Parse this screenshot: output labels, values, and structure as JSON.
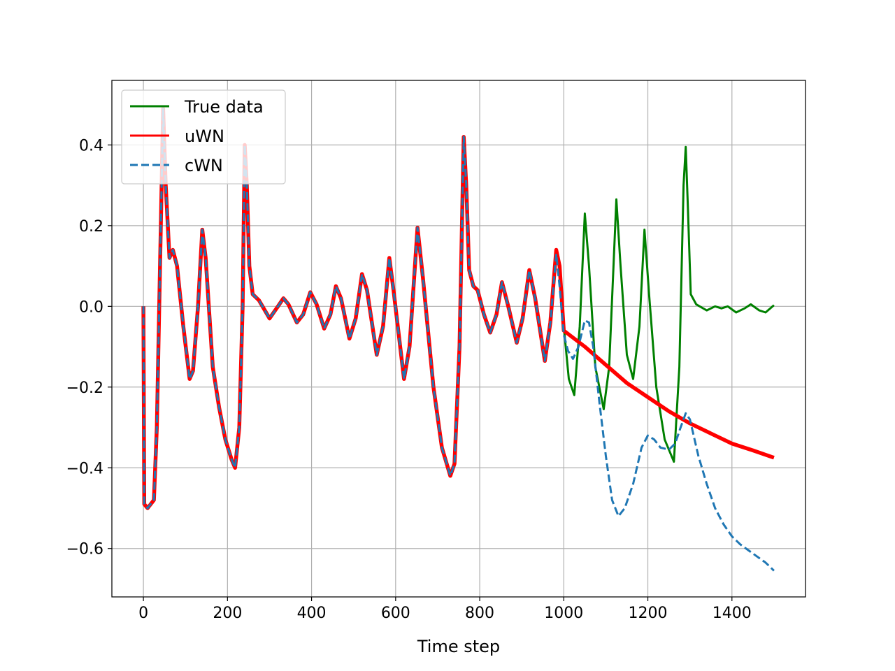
{
  "chart_data": {
    "type": "line",
    "title": "",
    "xlabel": "Time step",
    "ylabel": "",
    "xlim": [
      -75,
      1575
    ],
    "ylim": [
      -0.72,
      0.56
    ],
    "xticks": [
      0,
      200,
      400,
      600,
      800,
      1000,
      1200,
      1400
    ],
    "yticks": [
      -0.6,
      -0.4,
      -0.2,
      0.0,
      0.2,
      0.4
    ],
    "ytick_labels": [
      "−0.6",
      "−0.4",
      "−0.2",
      "0.0",
      "0.2",
      "0.4"
    ],
    "grid": true,
    "legend": {
      "position": "top-left"
    },
    "series": [
      {
        "name": "True data",
        "color": "#008000",
        "style": "solid",
        "points": [
          [
            0,
            0.0
          ],
          [
            2,
            -0.49
          ],
          [
            10,
            -0.5
          ],
          [
            25,
            -0.48
          ],
          [
            32,
            -0.3
          ],
          [
            40,
            0.12
          ],
          [
            47,
            0.49
          ],
          [
            53,
            0.3
          ],
          [
            62,
            0.12
          ],
          [
            70,
            0.14
          ],
          [
            80,
            0.1
          ],
          [
            95,
            -0.05
          ],
          [
            110,
            -0.18
          ],
          [
            118,
            -0.16
          ],
          [
            130,
            0.0
          ],
          [
            140,
            0.19
          ],
          [
            148,
            0.12
          ],
          [
            165,
            -0.15
          ],
          [
            180,
            -0.25
          ],
          [
            195,
            -0.33
          ],
          [
            210,
            -0.38
          ],
          [
            218,
            -0.4
          ],
          [
            228,
            -0.3
          ],
          [
            236,
            0.0
          ],
          [
            241,
            0.4
          ],
          [
            246,
            0.3
          ],
          [
            252,
            0.1
          ],
          [
            260,
            0.03
          ],
          [
            275,
            0.015
          ],
          [
            300,
            -0.03
          ],
          [
            320,
            0.0
          ],
          [
            333,
            0.02
          ],
          [
            345,
            0.005
          ],
          [
            365,
            -0.04
          ],
          [
            380,
            -0.02
          ],
          [
            397,
            0.035
          ],
          [
            412,
            0.005
          ],
          [
            430,
            -0.055
          ],
          [
            445,
            -0.02
          ],
          [
            458,
            0.05
          ],
          [
            470,
            0.02
          ],
          [
            490,
            -0.08
          ],
          [
            505,
            -0.03
          ],
          [
            520,
            0.08
          ],
          [
            532,
            0.04
          ],
          [
            555,
            -0.12
          ],
          [
            570,
            -0.05
          ],
          [
            585,
            0.12
          ],
          [
            595,
            0.04
          ],
          [
            620,
            -0.18
          ],
          [
            633,
            -0.1
          ],
          [
            652,
            0.195
          ],
          [
            665,
            0.07
          ],
          [
            690,
            -0.2
          ],
          [
            710,
            -0.35
          ],
          [
            730,
            -0.42
          ],
          [
            740,
            -0.39
          ],
          [
            752,
            -0.1
          ],
          [
            762,
            0.42
          ],
          [
            768,
            0.3
          ],
          [
            775,
            0.09
          ],
          [
            785,
            0.05
          ],
          [
            795,
            0.04
          ],
          [
            810,
            -0.02
          ],
          [
            825,
            -0.065
          ],
          [
            840,
            -0.02
          ],
          [
            853,
            0.06
          ],
          [
            868,
            0.0
          ],
          [
            888,
            -0.09
          ],
          [
            902,
            -0.03
          ],
          [
            918,
            0.09
          ],
          [
            932,
            0.02
          ],
          [
            955,
            -0.135
          ],
          [
            968,
            -0.04
          ],
          [
            982,
            0.14
          ],
          [
            990,
            0.1
          ],
          [
            1000,
            -0.05
          ],
          [
            1012,
            -0.18
          ],
          [
            1025,
            -0.22
          ],
          [
            1038,
            -0.05
          ],
          [
            1050,
            0.23
          ],
          [
            1060,
            0.1
          ],
          [
            1075,
            -0.15
          ],
          [
            1095,
            -0.255
          ],
          [
            1108,
            -0.15
          ],
          [
            1125,
            0.265
          ],
          [
            1135,
            0.1
          ],
          [
            1150,
            -0.12
          ],
          [
            1165,
            -0.18
          ],
          [
            1180,
            -0.05
          ],
          [
            1192,
            0.19
          ],
          [
            1203,
            0.03
          ],
          [
            1220,
            -0.2
          ],
          [
            1240,
            -0.33
          ],
          [
            1262,
            -0.385
          ],
          [
            1275,
            -0.15
          ],
          [
            1285,
            0.3
          ],
          [
            1290,
            0.395
          ],
          [
            1295,
            0.25
          ],
          [
            1302,
            0.03
          ],
          [
            1315,
            0.005
          ],
          [
            1340,
            -0.01
          ],
          [
            1360,
            0.0
          ],
          [
            1375,
            -0.005
          ],
          [
            1390,
            0.0
          ],
          [
            1410,
            -0.015
          ],
          [
            1430,
            -0.005
          ],
          [
            1445,
            0.005
          ],
          [
            1465,
            -0.01
          ],
          [
            1480,
            -0.015
          ],
          [
            1500,
            0.003
          ]
        ]
      },
      {
        "name": "uWN",
        "color": "#ff0000",
        "style": "solid",
        "points": [
          [
            0,
            0.0
          ],
          [
            2,
            -0.49
          ],
          [
            10,
            -0.5
          ],
          [
            25,
            -0.48
          ],
          [
            32,
            -0.3
          ],
          [
            40,
            0.12
          ],
          [
            47,
            0.49
          ],
          [
            53,
            0.3
          ],
          [
            62,
            0.12
          ],
          [
            70,
            0.14
          ],
          [
            80,
            0.1
          ],
          [
            95,
            -0.05
          ],
          [
            110,
            -0.18
          ],
          [
            118,
            -0.16
          ],
          [
            130,
            0.0
          ],
          [
            140,
            0.19
          ],
          [
            148,
            0.12
          ],
          [
            165,
            -0.15
          ],
          [
            180,
            -0.25
          ],
          [
            195,
            -0.33
          ],
          [
            210,
            -0.38
          ],
          [
            218,
            -0.4
          ],
          [
            228,
            -0.3
          ],
          [
            236,
            0.0
          ],
          [
            241,
            0.4
          ],
          [
            246,
            0.3
          ],
          [
            252,
            0.1
          ],
          [
            260,
            0.03
          ],
          [
            275,
            0.015
          ],
          [
            300,
            -0.03
          ],
          [
            320,
            0.0
          ],
          [
            333,
            0.02
          ],
          [
            345,
            0.005
          ],
          [
            365,
            -0.04
          ],
          [
            380,
            -0.02
          ],
          [
            397,
            0.035
          ],
          [
            412,
            0.005
          ],
          [
            430,
            -0.055
          ],
          [
            445,
            -0.02
          ],
          [
            458,
            0.05
          ],
          [
            470,
            0.02
          ],
          [
            490,
            -0.08
          ],
          [
            505,
            -0.03
          ],
          [
            520,
            0.08
          ],
          [
            532,
            0.04
          ],
          [
            555,
            -0.12
          ],
          [
            570,
            -0.05
          ],
          [
            585,
            0.12
          ],
          [
            595,
            0.04
          ],
          [
            620,
            -0.18
          ],
          [
            633,
            -0.1
          ],
          [
            652,
            0.195
          ],
          [
            665,
            0.07
          ],
          [
            690,
            -0.2
          ],
          [
            710,
            -0.35
          ],
          [
            730,
            -0.42
          ],
          [
            740,
            -0.39
          ],
          [
            752,
            -0.1
          ],
          [
            762,
            0.42
          ],
          [
            768,
            0.3
          ],
          [
            775,
            0.09
          ],
          [
            785,
            0.05
          ],
          [
            795,
            0.04
          ],
          [
            810,
            -0.02
          ],
          [
            825,
            -0.065
          ],
          [
            840,
            -0.02
          ],
          [
            853,
            0.06
          ],
          [
            868,
            0.0
          ],
          [
            888,
            -0.09
          ],
          [
            902,
            -0.03
          ],
          [
            918,
            0.09
          ],
          [
            932,
            0.02
          ],
          [
            955,
            -0.135
          ],
          [
            968,
            -0.04
          ],
          [
            982,
            0.14
          ],
          [
            990,
            0.1
          ],
          [
            1000,
            -0.06
          ],
          [
            1050,
            -0.1
          ],
          [
            1100,
            -0.145
          ],
          [
            1150,
            -0.19
          ],
          [
            1200,
            -0.225
          ],
          [
            1250,
            -0.26
          ],
          [
            1300,
            -0.29
          ],
          [
            1350,
            -0.315
          ],
          [
            1400,
            -0.34
          ],
          [
            1450,
            -0.357
          ],
          [
            1500,
            -0.375
          ]
        ]
      },
      {
        "name": "cWN",
        "color": "#1f77b4",
        "style": "dashed",
        "points": [
          [
            0,
            0.0
          ],
          [
            2,
            -0.49
          ],
          [
            10,
            -0.5
          ],
          [
            25,
            -0.48
          ],
          [
            32,
            -0.3
          ],
          [
            40,
            0.12
          ],
          [
            47,
            0.49
          ],
          [
            53,
            0.3
          ],
          [
            62,
            0.12
          ],
          [
            70,
            0.14
          ],
          [
            80,
            0.1
          ],
          [
            95,
            -0.05
          ],
          [
            110,
            -0.18
          ],
          [
            118,
            -0.16
          ],
          [
            130,
            0.0
          ],
          [
            140,
            0.19
          ],
          [
            148,
            0.12
          ],
          [
            165,
            -0.15
          ],
          [
            180,
            -0.25
          ],
          [
            195,
            -0.33
          ],
          [
            210,
            -0.38
          ],
          [
            218,
            -0.4
          ],
          [
            228,
            -0.3
          ],
          [
            236,
            0.0
          ],
          [
            241,
            0.4
          ],
          [
            246,
            0.3
          ],
          [
            252,
            0.1
          ],
          [
            260,
            0.03
          ],
          [
            275,
            0.015
          ],
          [
            300,
            -0.03
          ],
          [
            320,
            0.0
          ],
          [
            333,
            0.02
          ],
          [
            345,
            0.005
          ],
          [
            365,
            -0.04
          ],
          [
            380,
            -0.02
          ],
          [
            397,
            0.035
          ],
          [
            412,
            0.005
          ],
          [
            430,
            -0.055
          ],
          [
            445,
            -0.02
          ],
          [
            458,
            0.05
          ],
          [
            470,
            0.02
          ],
          [
            490,
            -0.08
          ],
          [
            505,
            -0.03
          ],
          [
            520,
            0.08
          ],
          [
            532,
            0.04
          ],
          [
            555,
            -0.12
          ],
          [
            570,
            -0.05
          ],
          [
            585,
            0.12
          ],
          [
            595,
            0.04
          ],
          [
            620,
            -0.18
          ],
          [
            633,
            -0.1
          ],
          [
            652,
            0.195
          ],
          [
            665,
            0.07
          ],
          [
            690,
            -0.2
          ],
          [
            710,
            -0.35
          ],
          [
            730,
            -0.42
          ],
          [
            740,
            -0.39
          ],
          [
            752,
            -0.1
          ],
          [
            762,
            0.42
          ],
          [
            768,
            0.3
          ],
          [
            775,
            0.09
          ],
          [
            785,
            0.05
          ],
          [
            795,
            0.04
          ],
          [
            810,
            -0.02
          ],
          [
            825,
            -0.065
          ],
          [
            840,
            -0.02
          ],
          [
            853,
            0.06
          ],
          [
            868,
            0.0
          ],
          [
            888,
            -0.09
          ],
          [
            902,
            -0.03
          ],
          [
            918,
            0.09
          ],
          [
            932,
            0.02
          ],
          [
            955,
            -0.135
          ],
          [
            968,
            -0.04
          ],
          [
            982,
            0.13
          ],
          [
            990,
            0.05
          ],
          [
            1000,
            -0.07
          ],
          [
            1010,
            -0.11
          ],
          [
            1022,
            -0.13
          ],
          [
            1035,
            -0.1
          ],
          [
            1050,
            -0.035
          ],
          [
            1060,
            -0.04
          ],
          [
            1070,
            -0.1
          ],
          [
            1085,
            -0.24
          ],
          [
            1100,
            -0.37
          ],
          [
            1115,
            -0.48
          ],
          [
            1130,
            -0.52
          ],
          [
            1145,
            -0.5
          ],
          [
            1165,
            -0.44
          ],
          [
            1185,
            -0.35
          ],
          [
            1200,
            -0.32
          ],
          [
            1215,
            -0.33
          ],
          [
            1230,
            -0.35
          ],
          [
            1250,
            -0.355
          ],
          [
            1265,
            -0.34
          ],
          [
            1278,
            -0.3
          ],
          [
            1290,
            -0.265
          ],
          [
            1300,
            -0.28
          ],
          [
            1320,
            -0.37
          ],
          [
            1340,
            -0.44
          ],
          [
            1360,
            -0.5
          ],
          [
            1380,
            -0.54
          ],
          [
            1400,
            -0.57
          ],
          [
            1420,
            -0.59
          ],
          [
            1440,
            -0.605
          ],
          [
            1460,
            -0.62
          ],
          [
            1480,
            -0.635
          ],
          [
            1500,
            -0.655
          ]
        ]
      }
    ]
  }
}
